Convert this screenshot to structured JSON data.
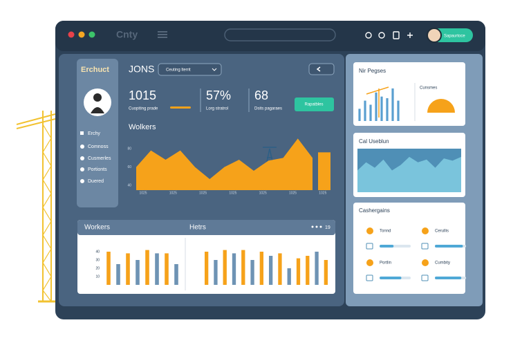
{
  "topbar": {
    "logo": "Cnty",
    "profile": "Sapaurtoce"
  },
  "sidebar": {
    "title": "Erchuct",
    "items": [
      "Erchy",
      "Comnoss",
      "Cusmerles",
      "Portionts",
      "Duered"
    ]
  },
  "header": {
    "title": "JONS",
    "dropdown": "Ceuting lterrit"
  },
  "stats": [
    {
      "value": "1015",
      "label": "Cuopiting prade"
    },
    {
      "value": "57%",
      "label": "Lorg stratrol"
    },
    {
      "value": "68",
      "label": "Dsits pagaraes"
    }
  ],
  "action": "Rapatbles",
  "area_chart": {
    "type": "area",
    "title": "Wolkers",
    "color": "#f6a21a",
    "values": [
      60,
      78,
      68,
      78,
      60,
      47,
      60,
      68,
      56,
      67,
      70,
      91,
      70
    ],
    "side_bar": 76,
    "ylim": [
      35,
      95
    ],
    "yticks": [
      40,
      60,
      80
    ],
    "x_labels": [
      "1025",
      "1025",
      "1025",
      "1025",
      "1025",
      "1025",
      "1025"
    ]
  },
  "bottom": {
    "left": {
      "type": "bar",
      "title": "Workers",
      "ylim": [
        0,
        50
      ],
      "yticks": [
        10,
        20,
        30,
        40
      ],
      "values": [
        40,
        25,
        38,
        30,
        42,
        38,
        38,
        25
      ],
      "colors": [
        "#f6a21a",
        "#6e93b4",
        "#f6a21a",
        "#6e93b4",
        "#f6a21a",
        "#6e93b4",
        "#f6a21a",
        "#6e93b4"
      ]
    },
    "right": {
      "type": "bar",
      "title": "Hetrs",
      "badge": "19",
      "ylim": [
        0,
        50
      ],
      "values": [
        40,
        30,
        42,
        38,
        42,
        30,
        40,
        35,
        38,
        20,
        32,
        35,
        40,
        30
      ],
      "colors": [
        "#f6a21a",
        "#6e93b4",
        "#f6a21a",
        "#6e93b4",
        "#f6a21a",
        "#6e93b4",
        "#f6a21a",
        "#6e93b4",
        "#f6a21a",
        "#6e93b4",
        "#f6a21a",
        "#f6a21a",
        "#6e93b4",
        "#f6a21a"
      ]
    }
  },
  "panels": {
    "first": {
      "title": "Nir Pegses",
      "subtitle": "Cunsmes",
      "type": "bar",
      "color": "#5a9fd0",
      "ylim": [
        0,
        45
      ],
      "values": [
        15,
        25,
        20,
        35,
        30,
        28,
        40,
        25
      ]
    },
    "second": {
      "title": "Cal Useblun",
      "type": "area",
      "color": "#7ac4dc",
      "ylim": [
        0,
        80
      ],
      "values": [
        40,
        55,
        45,
        60,
        40,
        50,
        65,
        55,
        60,
        45,
        62,
        58,
        65
      ]
    },
    "third": {
      "title": "Cashergains",
      "items": [
        {
          "label": "Tonnd",
          "value": 45
        },
        {
          "label": "Cerullis",
          "value": 90
        },
        {
          "label": "Portlin",
          "value": 70
        },
        {
          "label": "Cumbity",
          "value": 85
        }
      ]
    }
  }
}
